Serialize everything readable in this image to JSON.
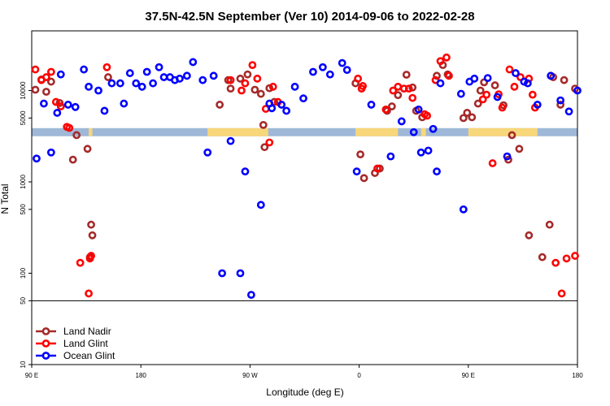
{
  "chart_data": {
    "type": "scatter",
    "title": "37.5N-42.5N September (Ver 10)   2014-09-06 to 2022-02-28",
    "xlabel": "Longitude (deg E)",
    "ylabel": "N Total",
    "scale": "log",
    "x_ticks": [
      {
        "value": 90,
        "label": "90 E"
      },
      {
        "value": 180,
        "label": "180"
      },
      {
        "value": 270,
        "label": "90 W"
      },
      {
        "value": 360,
        "label": "0"
      },
      {
        "value": 450,
        "label": "90 E"
      },
      {
        "value": 540,
        "label": "180"
      }
    ],
    "y_ticks": [
      {
        "value": 10,
        "label": "10"
      },
      {
        "value": 50,
        "label": "50"
      },
      {
        "value": 100,
        "label": "100"
      },
      {
        "value": 500,
        "label": "500"
      },
      {
        "value": 1000,
        "label": "1000"
      },
      {
        "value": 5000,
        "label": "5000"
      },
      {
        "value": 10000,
        "label": "10000"
      }
    ],
    "xlim": [
      90,
      540
    ],
    "ylim": [
      10,
      45000
    ],
    "lower_panel_boundary": 50,
    "map_strip_value": 3500,
    "map_land_segments": [
      [
        137,
        140
      ],
      [
        235,
        285
      ],
      [
        357,
        392
      ],
      [
        411,
        415
      ],
      [
        450,
        507
      ]
    ],
    "legend": {
      "position": "bottom-left"
    },
    "colors": {
      "land_nadir": "#a52a2a",
      "land_glint": "#ff0000",
      "ocean_glint": "#0000ff",
      "land": "#f8d77a",
      "ocean": "#9fb8d8"
    },
    "series": [
      {
        "name": "Land Nadir",
        "color": "#a52a2a",
        "x": [
          93,
          98,
          102,
          106,
          113,
          124,
          127,
          136,
          140,
          138,
          139,
          153,
          245,
          252,
          254,
          262,
          268,
          274,
          279,
          281,
          282,
          286,
          290,
          357,
          361,
          364,
          373,
          377,
          383,
          387,
          392,
          399,
          404,
          407,
          412,
          424,
          429,
          433,
          446,
          449,
          453,
          458,
          460,
          463,
          472,
          479,
          483,
          486,
          492,
          500,
          511,
          517,
          520,
          526,
          529,
          538
        ],
        "y": [
          10200,
          13200,
          9700,
          12500,
          7300,
          1750,
          3250,
          2300,
          260,
          150,
          340,
          14000,
          7000,
          13000,
          10500,
          13500,
          15000,
          10200,
          9200,
          4200,
          2400,
          10600,
          7500,
          12000,
          2000,
          1100,
          1250,
          1400,
          6000,
          6700,
          8900,
          14900,
          10800,
          6000,
          5100,
          14500,
          19000,
          15000,
          5000,
          5700,
          5100,
          7200,
          10000,
          12300,
          11400,
          6900,
          1750,
          3250,
          2300,
          260,
          150,
          340,
          14000,
          7000,
          13000,
          10500
        ]
      },
      {
        "name": "Land Glint",
        "color": "#ff0000",
        "x": [
          93,
          98,
          102,
          106,
          110,
          114,
          119,
          121,
          130,
          137,
          138,
          139,
          152,
          254,
          263,
          266,
          272,
          276,
          283,
          286,
          289,
          293,
          359,
          362,
          363,
          375,
          382,
          388,
          392,
          397,
          401,
          404,
          414,
          416,
          423,
          427,
          432,
          434,
          462,
          465,
          470,
          475,
          478,
          484,
          488,
          493,
          500,
          503,
          505,
          522,
          527,
          531,
          538
        ],
        "y": [
          17000,
          13000,
          14000,
          16000,
          7500,
          6700,
          4000,
          3900,
          130,
          60,
          145,
          155,
          18000,
          13000,
          10000,
          12000,
          19000,
          13500,
          6300,
          2700,
          11000,
          7500,
          13500,
          10500,
          11200,
          1400,
          6200,
          10000,
          11000,
          10500,
          10500,
          8300,
          5500,
          5300,
          13000,
          21000,
          23000,
          14500,
          8000,
          9000,
          1600,
          9100,
          6500,
          17000,
          11000,
          14000,
          13500,
          9000,
          6500,
          130,
          60,
          145,
          155
        ]
      },
      {
        "name": "Ocean Glint",
        "color": "#0000ff",
        "x": [
          94,
          100,
          106,
          111,
          114,
          120,
          126,
          133,
          137,
          145,
          150,
          156,
          163,
          166,
          171,
          176,
          181,
          185,
          190,
          195,
          199,
          204,
          208,
          212,
          218,
          223,
          231,
          235,
          240,
          247,
          254,
          262,
          266,
          271,
          279,
          286,
          288,
          296,
          300,
          307,
          314,
          322,
          330,
          336,
          346,
          350,
          358,
          370,
          386,
          395,
          405,
          409,
          411,
          417,
          421,
          424,
          427,
          444,
          446,
          451,
          455,
          466,
          474,
          482,
          489,
          496,
          499,
          507,
          518,
          526,
          533,
          540
        ],
        "y": [
          1800,
          7200,
          2100,
          5700,
          15000,
          7000,
          6600,
          17000,
          11000,
          10000,
          6000,
          12000,
          12000,
          7200,
          15500,
          12000,
          11000,
          16000,
          12000,
          18000,
          14000,
          14000,
          13000,
          13500,
          14500,
          20500,
          13000,
          2100,
          14500,
          100,
          2800,
          100,
          1300,
          58,
          560,
          7200,
          6400,
          7000,
          6000,
          11000,
          8200,
          16000,
          18000,
          15000,
          20000,
          16800,
          1300,
          7000,
          1900,
          4600,
          3500,
          6200,
          2100,
          2200,
          3800,
          1300,
          12000,
          9200,
          500,
          12500,
          13500,
          13700,
          8500,
          1900,
          15500,
          12500,
          12000,
          7000,
          14500,
          7800,
          5900,
          10000
        ]
      }
    ]
  }
}
